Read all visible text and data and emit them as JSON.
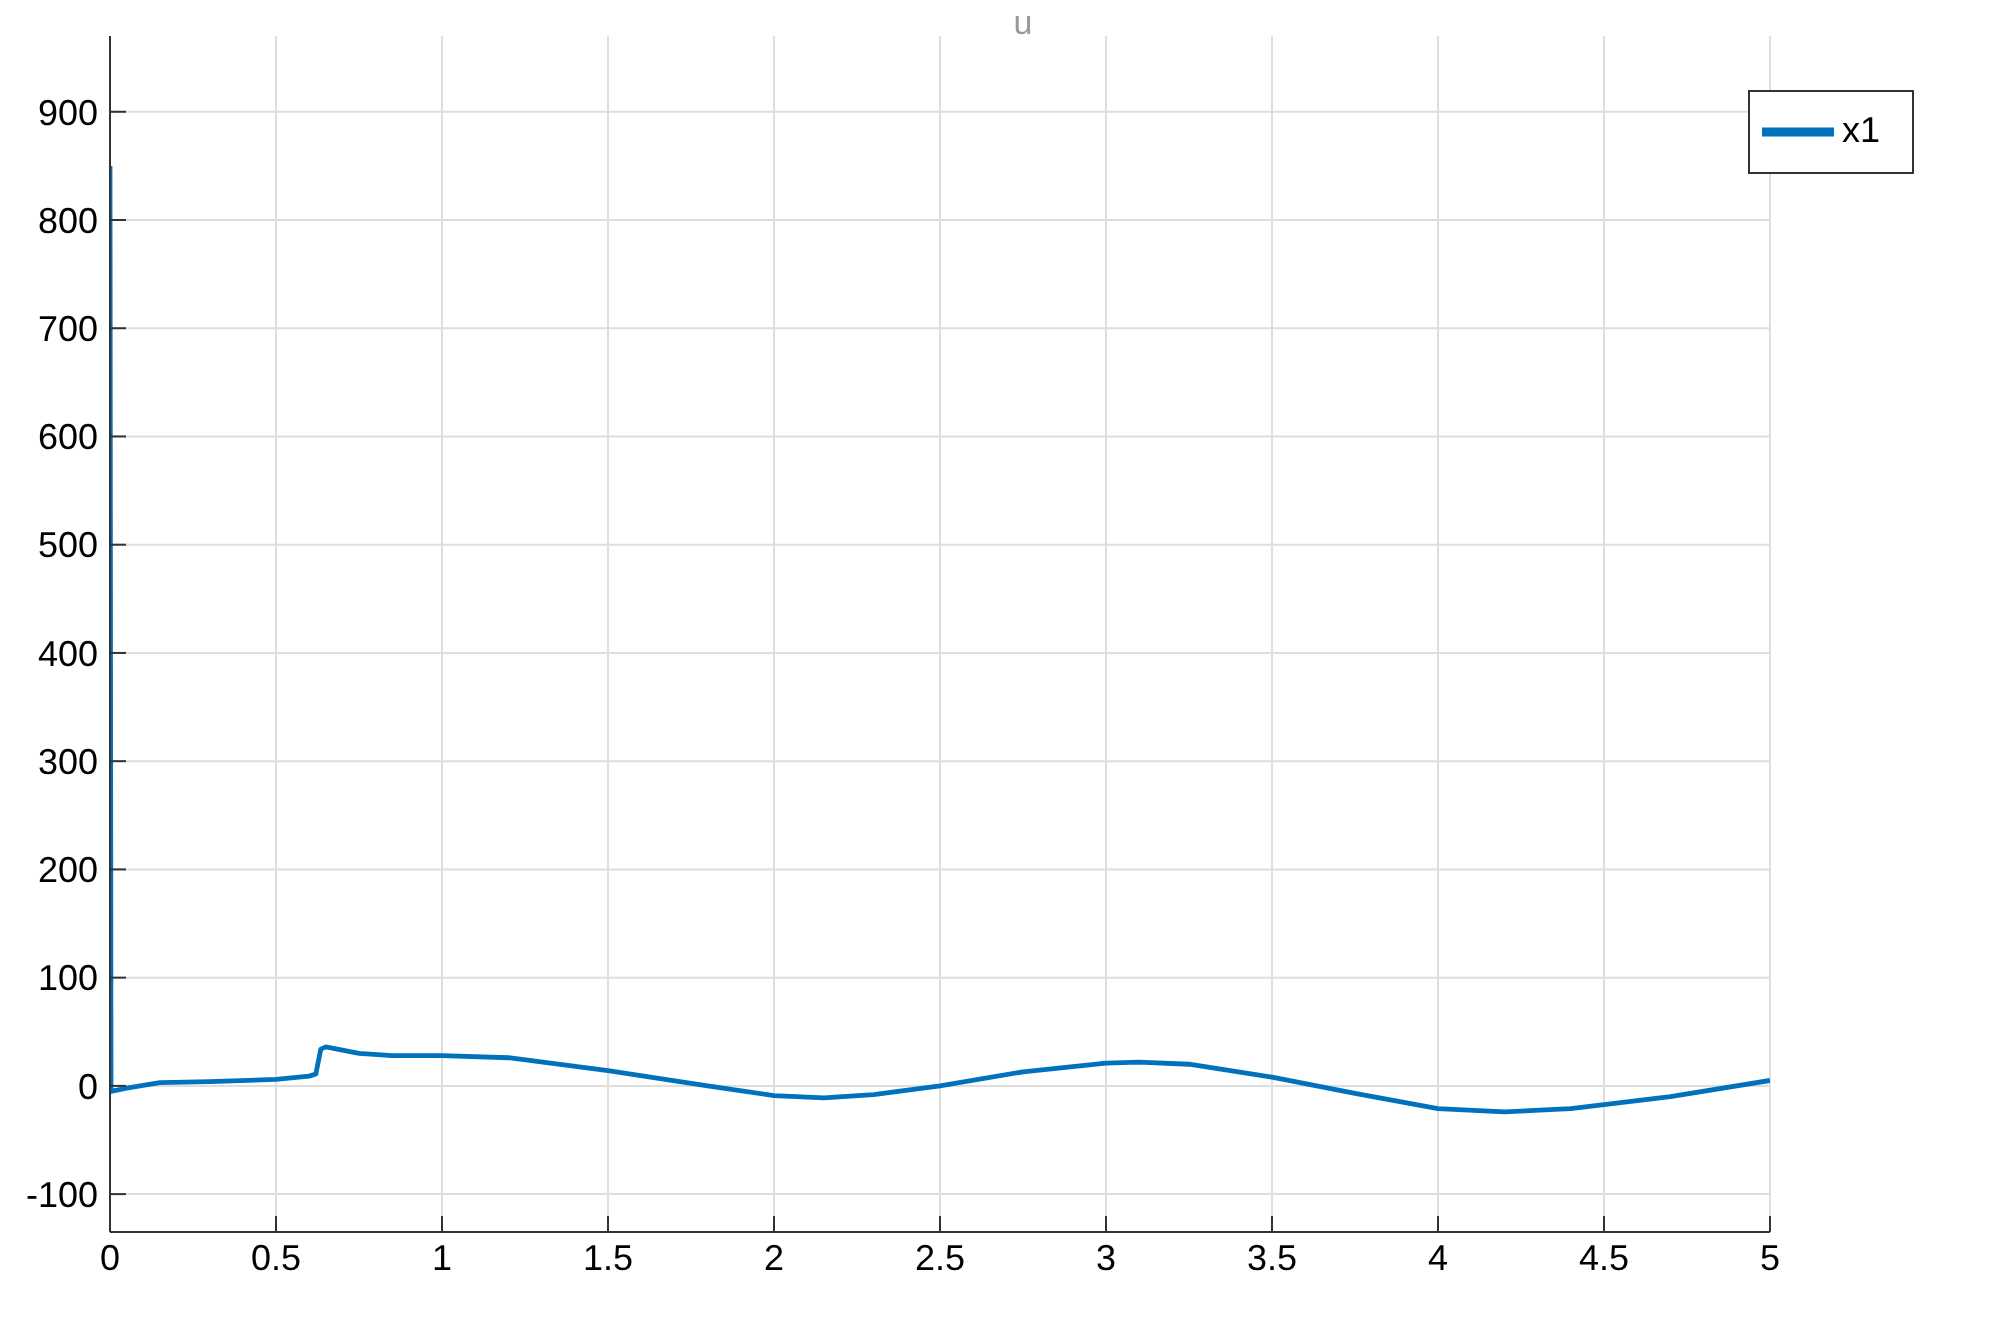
{
  "chart_data": {
    "type": "line",
    "title": "u",
    "x": [
      0,
      0.003,
      0.05,
      0.15,
      0.3,
      0.5,
      0.6,
      0.62,
      0.635,
      0.65,
      0.75,
      0.85,
      1.0,
      1.2,
      1.5,
      1.8,
      2.0,
      2.15,
      2.3,
      2.5,
      2.75,
      3.0,
      3.1,
      3.25,
      3.5,
      3.75,
      4.0,
      4.2,
      4.4,
      4.7,
      5.0
    ],
    "series": [
      {
        "name": "x1",
        "color": "#0072bd",
        "values": [
          850,
          -5,
          -2,
          3,
          4,
          6,
          9,
          11,
          34,
          36,
          30,
          28,
          28,
          26,
          14,
          0,
          -9,
          -11,
          -8,
          0,
          13,
          21,
          22,
          20,
          8,
          -7,
          -21,
          -24,
          -21,
          -10,
          5
        ]
      }
    ],
    "xlim": [
      0,
      5
    ],
    "xticks": [
      0,
      0.5,
      1,
      1.5,
      2,
      2.5,
      3,
      3.5,
      4,
      4.5,
      5
    ],
    "ylim": [
      -135,
      970
    ],
    "yticks": [
      -100,
      0,
      100,
      200,
      300,
      400,
      500,
      600,
      700,
      800,
      900
    ],
    "grid": true,
    "legend": "top right",
    "marker": "none",
    "line_style": "solid"
  }
}
